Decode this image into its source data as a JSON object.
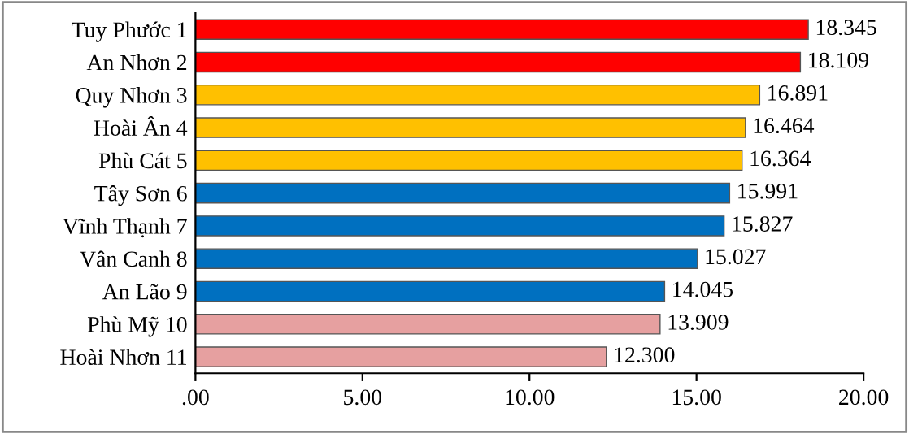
{
  "chart_data": {
    "type": "bar",
    "orientation": "horizontal",
    "categories": [
      "Tuy Phước 1",
      "An Nhơn 2",
      "Quy Nhơn 3",
      "Hoài Ân 4",
      "Phù Cát 5",
      "Tây Sơn 6",
      "Vĩnh Thạnh 7",
      "Vân Canh 8",
      "An Lão 9",
      "Phù Mỹ 10",
      "Hoài Nhơn 11"
    ],
    "values": [
      18.345,
      18.109,
      16.891,
      16.464,
      16.364,
      15.991,
      15.827,
      15.027,
      14.045,
      13.909,
      12.3
    ],
    "value_labels": [
      "18.345",
      "18.109",
      "16.891",
      "16.464",
      "16.364",
      "15.991",
      "15.827",
      "15.027",
      "14.045",
      "13.909",
      "12.300"
    ],
    "colors": [
      "#ff0000",
      "#ff0000",
      "#ffc000",
      "#ffc000",
      "#ffc000",
      "#0070c0",
      "#0070c0",
      "#0070c0",
      "#0070c0",
      "#e6a0a0",
      "#e6a0a0"
    ],
    "xlim": [
      0,
      20
    ],
    "xticks": [
      {
        "value": 0,
        "label": ".00"
      },
      {
        "value": 5,
        "label": "5.00"
      },
      {
        "value": 10,
        "label": "10.00"
      },
      {
        "value": 15,
        "label": "15.00"
      },
      {
        "value": 20,
        "label": "20.00"
      }
    ]
  }
}
